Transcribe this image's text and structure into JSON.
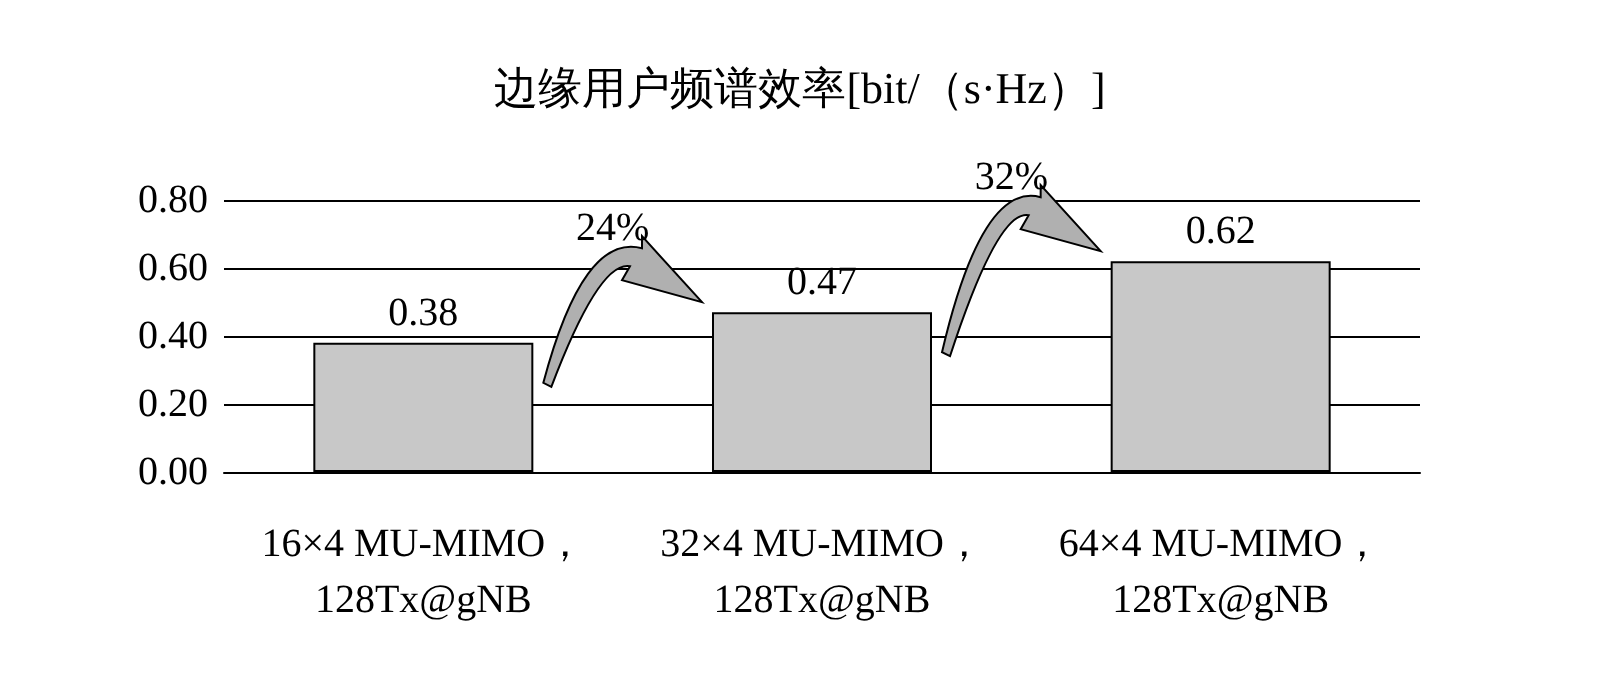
{
  "chart_data": {
    "type": "bar",
    "title": "边缘用户频谱效率[bit/（s·Hz）]",
    "categories": [
      "16×4 MU-MIMO，\n128Tx@gNB",
      "32×4 MU-MIMO，\n128Tx@gNB",
      "64×4 MU-MIMO，\n128Tx@gNB"
    ],
    "values": [
      0.38,
      0.47,
      0.62
    ],
    "color": "#c8c8c8",
    "ylim": [
      0,
      0.8
    ],
    "yticks": [
      {
        "value": 0,
        "label": "0.00"
      },
      {
        "value": 0.2,
        "label": "0.20"
      },
      {
        "value": 0.4,
        "label": "0.40"
      },
      {
        "value": 0.6,
        "label": "0.60"
      },
      {
        "value": 0.8,
        "label": "0.80"
      }
    ],
    "grid": "y",
    "data_labels": true,
    "annotations": [
      "24%",
      "32%"
    ]
  }
}
